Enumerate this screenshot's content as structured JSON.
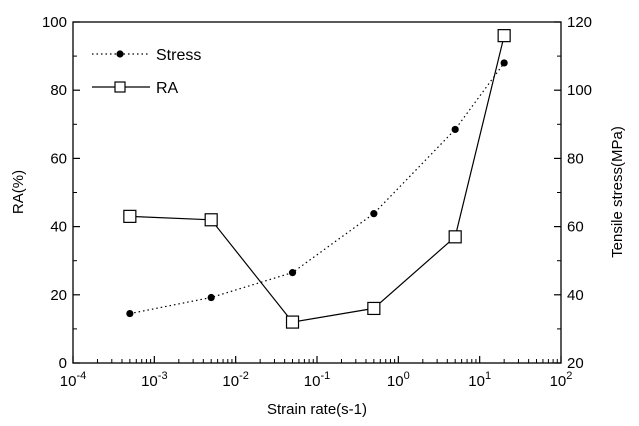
{
  "chart_data": {
    "type": "line",
    "xlabel": "Strain rate(s-1)",
    "ylabel_left": "RA(%)",
    "ylabel_right": "Tensile stress(MPa)",
    "x_scale": "log",
    "x_range": [
      0.0001,
      100
    ],
    "y_left_range": [
      0,
      100
    ],
    "y_right_range": [
      20,
      120
    ],
    "x_ticks": [
      {
        "value": 0.0001,
        "base": "10",
        "exp": "-4"
      },
      {
        "value": 0.001,
        "base": "10",
        "exp": "-3"
      },
      {
        "value": 0.01,
        "base": "10",
        "exp": "-2"
      },
      {
        "value": 0.1,
        "base": "10",
        "exp": "-1"
      },
      {
        "value": 1,
        "base": "10",
        "exp": "0"
      },
      {
        "value": 10,
        "base": "10",
        "exp": "1"
      },
      {
        "value": 100,
        "base": "10",
        "exp": "2"
      }
    ],
    "y_left_ticks": [
      "0",
      "20",
      "40",
      "60",
      "80",
      "100"
    ],
    "y_right_ticks": [
      "20",
      "40",
      "60",
      "80",
      "100",
      "120"
    ],
    "grid": false,
    "legend_position": "top-left",
    "series": [
      {
        "name": "Stress",
        "axis": "right",
        "style": "dotted",
        "marker": "filled-circle",
        "color": "#000000",
        "x": [
          0.0005,
          0.005,
          0.05,
          0.5,
          5,
          20
        ],
        "y": [
          34.5,
          39.2,
          46.5,
          63.8,
          88.5,
          108
        ]
      },
      {
        "name": "RA",
        "axis": "left",
        "style": "solid",
        "marker": "open-square",
        "color": "#000000",
        "x": [
          0.0005,
          0.005,
          0.05,
          0.5,
          5,
          20
        ],
        "y": [
          43,
          42,
          12,
          16,
          37,
          96
        ]
      }
    ]
  }
}
